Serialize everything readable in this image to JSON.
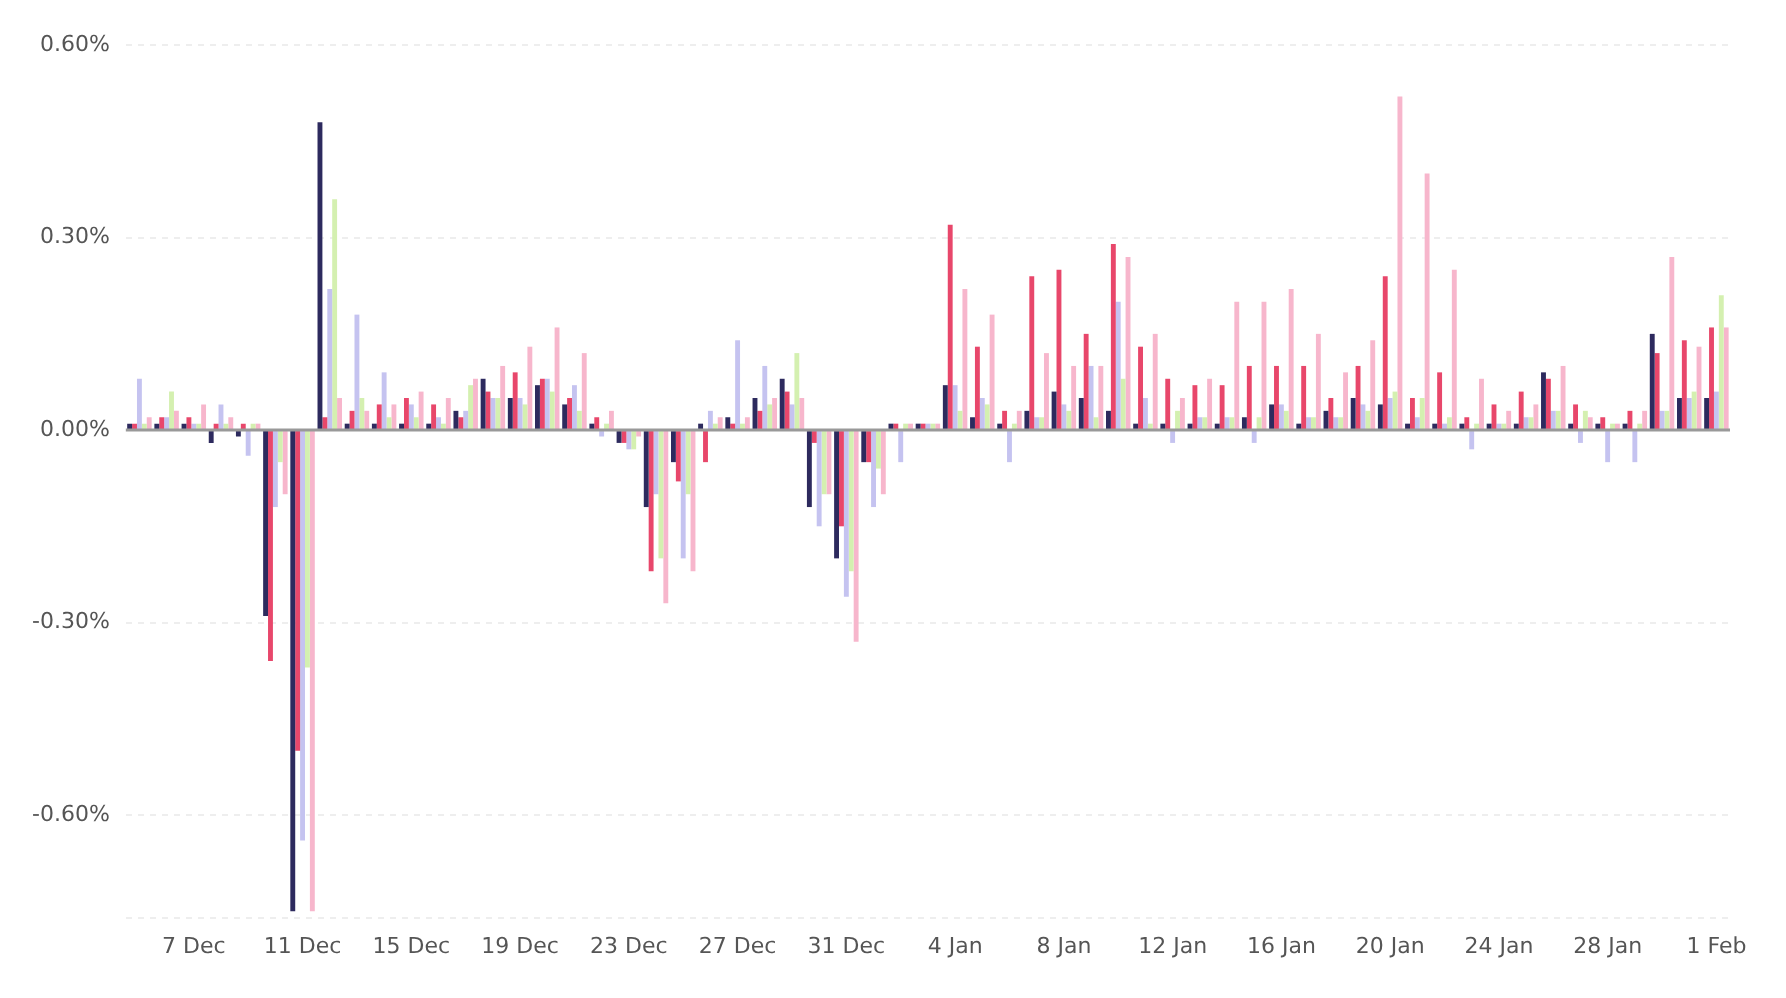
{
  "chart_data": {
    "type": "bar",
    "categories": [
      null,
      null,
      "7 Dec",
      null,
      null,
      null,
      "11 Dec",
      null,
      null,
      null,
      "15 Dec",
      null,
      null,
      null,
      "19 Dec",
      null,
      null,
      null,
      "23 Dec",
      null,
      null,
      null,
      "27 Dec",
      null,
      null,
      null,
      "31 Dec",
      null,
      null,
      null,
      "4 Jan",
      null,
      null,
      null,
      "8 Jan",
      null,
      null,
      null,
      "12 Jan",
      null,
      null,
      null,
      "16 Jan",
      null,
      null,
      null,
      "20 Jan",
      null,
      null,
      null,
      "24 Jan",
      null,
      null,
      null,
      "28 Jan",
      null,
      null,
      null,
      "1 Feb"
    ],
    "series": [
      {
        "color": "#2d2a5e",
        "values": [
          0.01,
          0.01,
          0.01,
          -0.02,
          -0.01,
          -0.29,
          -0.75,
          0.48,
          0.01,
          0.01,
          0.01,
          0.01,
          0.03,
          0.08,
          0.05,
          0.07,
          0.04,
          0.01,
          -0.02,
          -0.12,
          -0.05,
          0.01,
          0.02,
          0.05,
          0.08,
          -0.12,
          -0.2,
          -0.05,
          0.01,
          0.01,
          0.07,
          0.02,
          0.01,
          0.03,
          0.06,
          0.05,
          0.03,
          0.01,
          0.01,
          0.01,
          0.01,
          0.02,
          0.04,
          0.01,
          0.03,
          0.05,
          0.04,
          0.01,
          0.01,
          0.01,
          0.01,
          0.01,
          0.09,
          0.01,
          0.01,
          0.01,
          0.15,
          0.05,
          0.05
        ]
      },
      {
        "color": "#e8476b",
        "values": [
          0.01,
          0.02,
          0.02,
          0.01,
          0.01,
          -0.36,
          -0.5,
          0.02,
          0.03,
          0.04,
          0.05,
          0.04,
          0.02,
          0.06,
          0.09,
          0.08,
          0.05,
          0.02,
          -0.02,
          -0.22,
          -0.08,
          -0.05,
          0.01,
          0.03,
          0.06,
          -0.02,
          -0.15,
          -0.05,
          0.01,
          0.01,
          0.32,
          0.13,
          0.03,
          0.24,
          0.25,
          0.15,
          0.29,
          0.13,
          0.08,
          0.07,
          0.07,
          0.1,
          0.1,
          0.1,
          0.05,
          0.1,
          0.24,
          0.05,
          0.09,
          0.02,
          0.04,
          0.06,
          0.08,
          0.04,
          0.02,
          0.03,
          0.12,
          0.14,
          0.16
        ]
      },
      {
        "color": "#c5c3f0",
        "values": [
          0.08,
          0.02,
          0.01,
          0.04,
          -0.04,
          -0.12,
          -0.64,
          0.22,
          0.18,
          0.09,
          0.04,
          0.02,
          0.03,
          0.05,
          0.05,
          0.08,
          0.07,
          -0.01,
          -0.03,
          -0.1,
          -0.2,
          0.03,
          0.14,
          0.1,
          0.04,
          -0.15,
          -0.26,
          -0.12,
          -0.05,
          0.01,
          0.07,
          0.05,
          -0.05,
          0.02,
          0.04,
          0.1,
          0.2,
          0.05,
          -0.02,
          0.02,
          0.02,
          -0.02,
          0.04,
          0.02,
          0.02,
          0.04,
          0.05,
          0.02,
          0.01,
          -0.03,
          0.01,
          0.02,
          0.03,
          -0.02,
          -0.05,
          -0.05,
          0.03,
          0.05,
          0.06
        ]
      },
      {
        "color": "#d4f0b0",
        "values": [
          0.01,
          0.06,
          0.01,
          0.01,
          0.01,
          -0.05,
          -0.37,
          0.36,
          0.05,
          0.02,
          0.02,
          0.01,
          0.07,
          0.05,
          0.04,
          0.06,
          0.03,
          0.01,
          -0.03,
          -0.2,
          -0.1,
          0.01,
          0.01,
          0.04,
          0.12,
          -0.1,
          -0.22,
          -0.06,
          0.01,
          0.01,
          0.03,
          0.04,
          0.01,
          0.02,
          0.03,
          0.02,
          0.08,
          0.01,
          0.03,
          0.02,
          0.02,
          0.02,
          0.03,
          0.02,
          0.02,
          0.03,
          0.06,
          0.05,
          0.02,
          0.01,
          0.01,
          0.02,
          0.03,
          0.03,
          0.01,
          0.01,
          0.03,
          0.06,
          0.21
        ]
      },
      {
        "color": "#f7b6cc",
        "values": [
          0.02,
          0.03,
          0.04,
          0.02,
          0.01,
          -0.1,
          -0.75,
          0.05,
          0.03,
          0.04,
          0.06,
          0.05,
          0.08,
          0.1,
          0.13,
          0.16,
          0.12,
          0.03,
          -0.01,
          -0.27,
          -0.22,
          0.02,
          0.02,
          0.05,
          0.05,
          -0.1,
          -0.33,
          -0.1,
          0.01,
          0.01,
          0.22,
          0.18,
          0.03,
          0.12,
          0.1,
          0.1,
          0.27,
          0.15,
          0.05,
          0.08,
          0.2,
          0.2,
          0.22,
          0.15,
          0.09,
          0.14,
          0.52,
          0.4,
          0.25,
          0.08,
          0.03,
          0.04,
          0.1,
          0.02,
          0.01,
          0.03,
          0.27,
          0.13,
          0.16
        ]
      }
    ],
    "ylim": [
      -0.76,
      0.6
    ],
    "yticks": [
      {
        "value": 0.6,
        "label": "0.60%"
      },
      {
        "value": 0.3,
        "label": "0.30%"
      },
      {
        "value": 0,
        "label": "0.00%"
      },
      {
        "value": -0.3,
        "label": "-0.30%"
      },
      {
        "value": -0.6,
        "label": "-0.60%"
      },
      {
        "value": -0.76,
        "label": null
      }
    ],
    "ref_lines": [
      {
        "axis": "y",
        "value": 0,
        "color": "#999999"
      }
    ],
    "grid": "y"
  }
}
